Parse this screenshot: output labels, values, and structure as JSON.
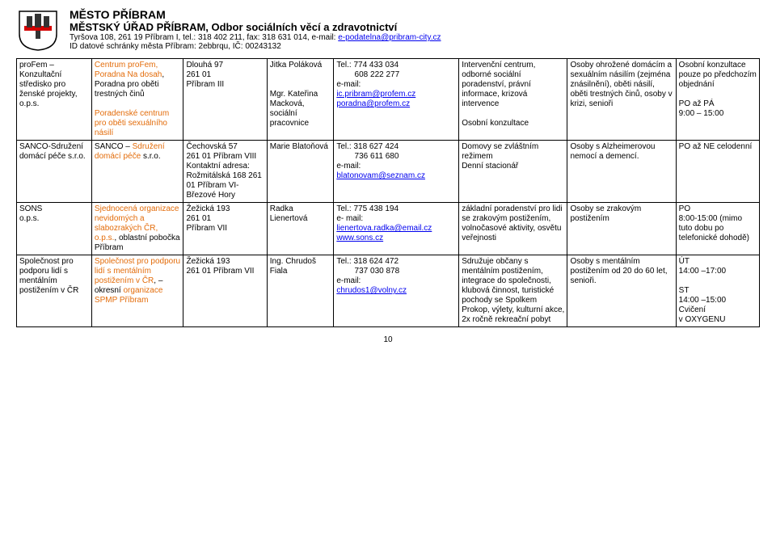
{
  "header": {
    "title1": "MĚSTO PŘÍBRAM",
    "title2": "MĚSTSKÝ ÚŘAD PŘÍBRAM, Odbor sociálních věcí a zdravotnictví",
    "line3a": "Tyršova 108,  261 19 Příbram I, tel.: 318 402 211, fax: 318 631 014, e-mail: ",
    "line3_link": "e-podatelna@pribram-city.cz",
    "line4": "ID datové schránky města Příbram: 2ebbrqu, IČ: 00243132"
  },
  "crest_colors": {
    "shield": "#ffffff",
    "outline": "#000000",
    "towers": "#333333",
    "band": "#d40000"
  },
  "rows": [
    {
      "c0": "proFem – Konzultační středisko pro ženské projekty, o.p.s.",
      "c1_html": "<span class='orange'>Centrum proFem, Poradna Na dosah</span>, Poradna pro oběti trestných činů<br><br><span class='orange'>Poradenské centrum pro oběti sexuálního násilí</span>",
      "c2": "Dlouhá 97\n261 01\nPříbram III",
      "c3": "Jitka Poláková\n\n\nMgr. Kateřina Macková, sociální pracovnice",
      "c4_html": "Tel.: 774 433 034<br>&nbsp;&nbsp;&nbsp;&nbsp;&nbsp;&nbsp;&nbsp;&nbsp;608 222 277<br>e-mail:<br><span class='link'>ic.pribram@profem.cz</span><br><span class='link'>poradna@profem.cz</span>",
      "c5": "Intervenční centrum, odborné sociální poradenství, právní informace, krizová intervence\n\nOsobní konzultace",
      "c6": "Osoby ohrožené domácím a sexuálním násilím (zejména znásilnění), oběti násilí, oběti trestných činů, osoby v krizi, senioři",
      "c7": "Osobní konzultace pouze po předchozím objednání\n\nPO až PÁ\n9:00 – 15:00"
    },
    {
      "c0": "SANCO-Sdružení domácí péče s.r.o.",
      "c1_html": "SANCO – <span class='orange'>Sdružení domácí péče</span>  s.r.o.",
      "c2": "Čechovská 57\n261 01 Příbram VIII\nKontaktní adresa:\nRožmitálská 168 261 01 Příbram VI- Březové Hory",
      "c3": "Marie Blatoňová",
      "c4_html": "Tel.: 318 627 424<br>&nbsp;&nbsp;&nbsp;&nbsp;&nbsp;&nbsp;&nbsp;&nbsp;736 611 680<br>e-mail:<br><span class='link'>blatonovam@seznam.cz</span>",
      "c5": "Domovy se zvláštním režimem\nDenní stacionář",
      "c6": "Osoby s Alzheimerovou nemocí a demencí.",
      "c7": "PO až NE celodenní"
    },
    {
      "c0": "SONS\no.p.s.",
      "c1_html": "<span class='orange'>Sjednocená organizace nevidomých a slabozrakých ČR, o.p.s.</span>, oblastní pobočka Příbram",
      "c2": "Žežická 193\n261 01\nPříbram VII",
      "c3": "Radka Lienertová",
      "c4_html": "Tel.: 775 438 194<br>e- mail:<br><span class='link'>lienertova.radka@email.cz</span><br><span class='link'>www.sons.cz</span>",
      "c5": "základní poradenství pro lidi se zrakovým postižením, volnočasové aktivity, osvětu veřejnosti",
      "c6": "Osoby se zrakovým postižením",
      "c7": "PO\n8:00-15:00 (mimo tuto dobu po telefonické dohodě)"
    },
    {
      "c0": "Společnost pro podporu lidí s mentálním postižením v ČR",
      "c1_html": "<span class='orange'>Společnost pro podporu lidí s mentálním postižením v ČR</span>, – okresní <span class='orange'>organizace SPMP Příbram</span>",
      "c2": "Žežická 193\n261 01 Příbram VII",
      "c3": "Ing. Chrudoš Fiala",
      "c4_html": "Tel.: 318 624 472<br>&nbsp;&nbsp;&nbsp;&nbsp;&nbsp;&nbsp;&nbsp;&nbsp;737  030 878<br>e-mail:<br><span class='link'>chrudos1@volny.cz</span>",
      "c5": "Sdružuje občany s mentálním postižením, integrace do společnosti, klubová činnost, turistické pochody se Spolkem Prokop, výlety, kulturní akce, 2x ročně rekreační pobyt",
      "c6": "Osoby s mentálním postižením od 20 do 60 let, senioři.",
      "c7": "ÚT\n14:00 –17:00\n\nST\n14:00 –15:00\nCvičení\nv OXYGENU"
    }
  ],
  "pagenum": "10"
}
